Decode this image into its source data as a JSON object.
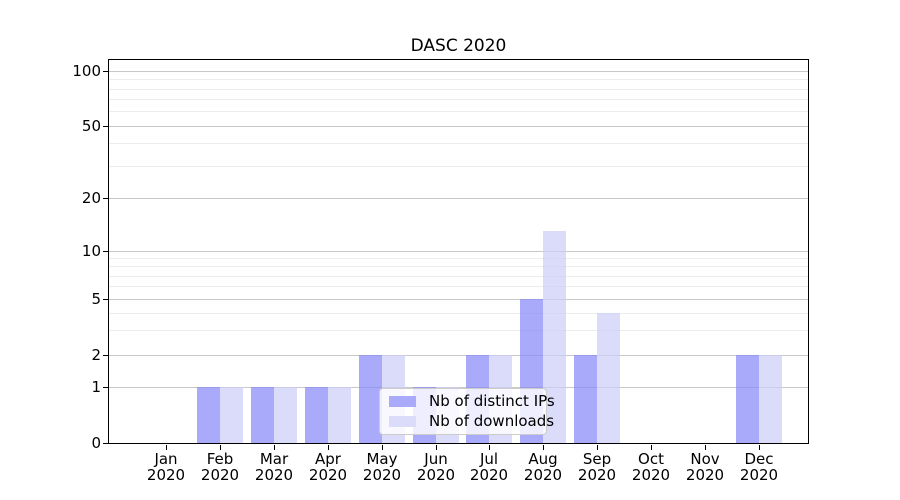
{
  "chart_data": {
    "type": "bar",
    "title": "DASC 2020",
    "year": "2020",
    "months": [
      "Jan",
      "Feb",
      "Mar",
      "Apr",
      "May",
      "Jun",
      "Jul",
      "Aug",
      "Sep",
      "Oct",
      "Nov",
      "Dec"
    ],
    "categories": [
      "Jan 2020",
      "Feb 2020",
      "Mar 2020",
      "Apr 2020",
      "May 2020",
      "Jun 2020",
      "Jul 2020",
      "Aug 2020",
      "Sep 2020",
      "Oct 2020",
      "Nov 2020",
      "Dec 2020"
    ],
    "series": [
      {
        "name": "Nb of distinct IPs",
        "color": "#a9abfa",
        "fill": "rgba(132,135,248,0.7)",
        "values": [
          0,
          1,
          1,
          1,
          2,
          1,
          2,
          5,
          2,
          0,
          0,
          2
        ]
      },
      {
        "name": "Nb of downloads",
        "color": "#dbdcfa",
        "fill": "rgba(204,205,248,0.7)",
        "values": [
          0,
          1,
          1,
          1,
          2,
          1,
          2,
          13,
          4,
          0,
          0,
          2
        ]
      }
    ],
    "yscale": "symlog",
    "ylim": [
      0,
      100
    ],
    "y_major_ticks": [
      0,
      1,
      2,
      5,
      10,
      20,
      50,
      100
    ],
    "y_minor_ticks": [
      3,
      4,
      6,
      7,
      8,
      9,
      30,
      40,
      60,
      70,
      80,
      90
    ],
    "grid": "horizontal",
    "legend_position": "lower center",
    "colors": {
      "background": "#ffffff",
      "major_grid": "#c8c8c8",
      "minor_grid": "#ececec",
      "axis": "#000000",
      "legend_border": "#cccccc",
      "text": "#000000"
    }
  }
}
